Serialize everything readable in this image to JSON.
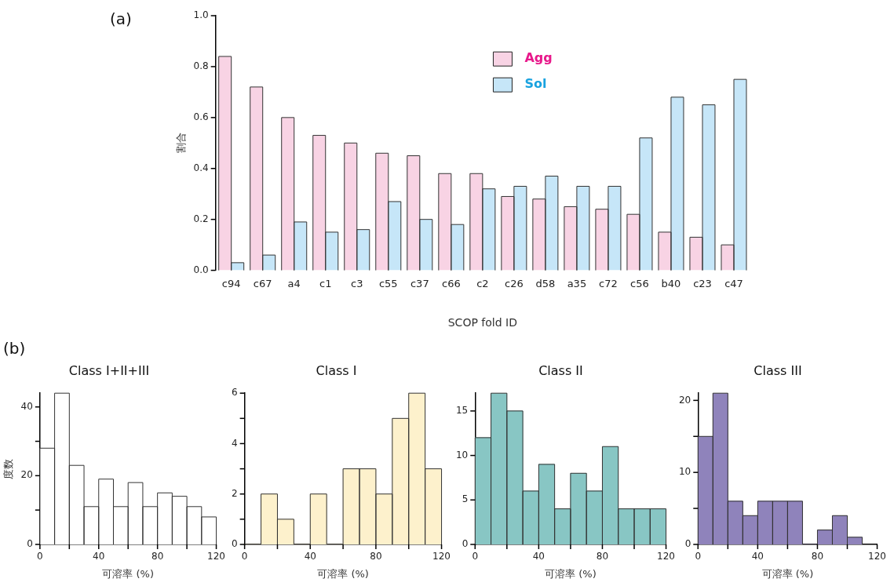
{
  "chart_data": [
    {
      "type": "bar",
      "ylabel": "割合",
      "xlabel": "SCOP fold ID",
      "annotations": [
        "(a)"
      ],
      "categories": [
        "c94",
        "c67",
        "a4",
        "c1",
        "c3",
        "c55",
        "c37",
        "c66",
        "c2",
        "c26",
        "d58",
        "a35",
        "c72",
        "c56",
        "b40",
        "c23",
        "c47"
      ],
      "series": [
        {
          "name": "Agg",
          "color": "#f8d3e4",
          "values": [
            0.84,
            0.72,
            0.6,
            0.53,
            0.5,
            0.46,
            0.45,
            0.38,
            0.38,
            0.29,
            0.28,
            0.25,
            0.24,
            0.22,
            0.15,
            0.13,
            0.1
          ]
        },
        {
          "name": "Sol",
          "color": "#c6e6f8",
          "values": [
            0.03,
            0.06,
            0.19,
            0.15,
            0.16,
            0.27,
            0.2,
            0.18,
            0.32,
            0.33,
            0.37,
            0.33,
            0.33,
            0.52,
            0.68,
            0.65,
            0.75
          ]
        }
      ],
      "ylim": [
        0,
        1
      ],
      "yticks": [
        {
          "value": 0,
          "label": "0.0"
        },
        {
          "value": 0.2,
          "label": "0.2"
        },
        {
          "value": 0.4,
          "label": "0.4"
        },
        {
          "value": 0.6,
          "label": "0.6"
        },
        {
          "value": 0.8,
          "label": "0.8"
        },
        {
          "value": 1,
          "label": "1.0"
        }
      ],
      "legend": "top",
      "grid": false
    },
    {
      "type": "histogram",
      "title": "Class I+II+III",
      "xlabel": "可溶率 (%)",
      "ylabel": "度数",
      "annotations": [
        "(b)"
      ],
      "color": "#ffffff",
      "bins": [
        0,
        10,
        20,
        30,
        40,
        50,
        60,
        70,
        80,
        90,
        100,
        110,
        120
      ],
      "values": [
        28,
        44,
        23,
        11,
        19,
        11,
        18,
        11,
        15,
        14,
        11,
        8
      ],
      "xlim": [
        0,
        120
      ],
      "xticks": [
        0,
        {
          "value": 20,
          "label": null
        },
        40,
        {
          "value": 60,
          "label": null
        },
        80,
        {
          "value": 100,
          "label": null
        },
        120
      ],
      "ylim": [
        0,
        44
      ],
      "yticks": [
        0,
        {
          "value": 10,
          "label": null
        },
        20,
        {
          "value": 30,
          "label": null
        },
        40
      ],
      "grid": false
    },
    {
      "type": "histogram",
      "title": "Class I",
      "xlabel": "可溶率 (%)",
      "color": "#fdf1cc",
      "bins": [
        0,
        10,
        20,
        30,
        40,
        50,
        60,
        70,
        80,
        90,
        100,
        110,
        120
      ],
      "values": [
        0,
        2,
        1,
        0,
        2,
        0,
        3,
        3,
        2,
        5,
        6,
        3
      ],
      "xlim": [
        0,
        120
      ],
      "xticks": [
        0,
        {
          "value": 20,
          "label": null
        },
        40,
        {
          "value": 60,
          "label": null
        },
        80,
        {
          "value": 100,
          "label": null
        },
        120
      ],
      "ylim": [
        0,
        6
      ],
      "yticks": [
        0,
        {
          "value": 1,
          "label": null
        },
        2,
        {
          "value": 3,
          "label": null
        },
        4,
        {
          "value": 5,
          "label": null
        },
        6
      ],
      "grid": false
    },
    {
      "type": "histogram",
      "title": "Class II",
      "xlabel": "可溶率 (%)",
      "color": "#88c6c4",
      "bins": [
        0,
        10,
        20,
        30,
        40,
        50,
        60,
        70,
        80,
        90,
        100,
        110,
        120
      ],
      "values": [
        12,
        17,
        15,
        6,
        9,
        4,
        8,
        6,
        11,
        4,
        4,
        4
      ],
      "xlim": [
        0,
        120
      ],
      "xticks": [
        0,
        {
          "value": 20,
          "label": null
        },
        40,
        {
          "value": 60,
          "label": null
        },
        80,
        {
          "value": 100,
          "label": null
        },
        120
      ],
      "ylim": [
        0,
        17
      ],
      "yticks": [
        0,
        5,
        10,
        15
      ],
      "grid": false
    },
    {
      "type": "histogram",
      "title": "Class III",
      "xlabel": "可溶率 (%)",
      "color": "#8f83bb",
      "bins": [
        0,
        10,
        20,
        30,
        40,
        50,
        60,
        70,
        80,
        90,
        100,
        110
      ],
      "values": [
        15,
        21,
        6,
        4,
        6,
        6,
        6,
        0,
        2,
        4,
        1
      ],
      "xlim": [
        0,
        120
      ],
      "xticks": [
        0,
        {
          "value": 20,
          "label": null
        },
        40,
        {
          "value": 60,
          "label": null
        },
        80,
        {
          "value": 100,
          "label": null
        },
        120
      ],
      "ylim": [
        0,
        21
      ],
      "yticks": [
        0,
        {
          "value": 5,
          "label": null
        },
        10,
        {
          "value": 15,
          "label": null
        },
        20
      ],
      "grid": false
    }
  ]
}
